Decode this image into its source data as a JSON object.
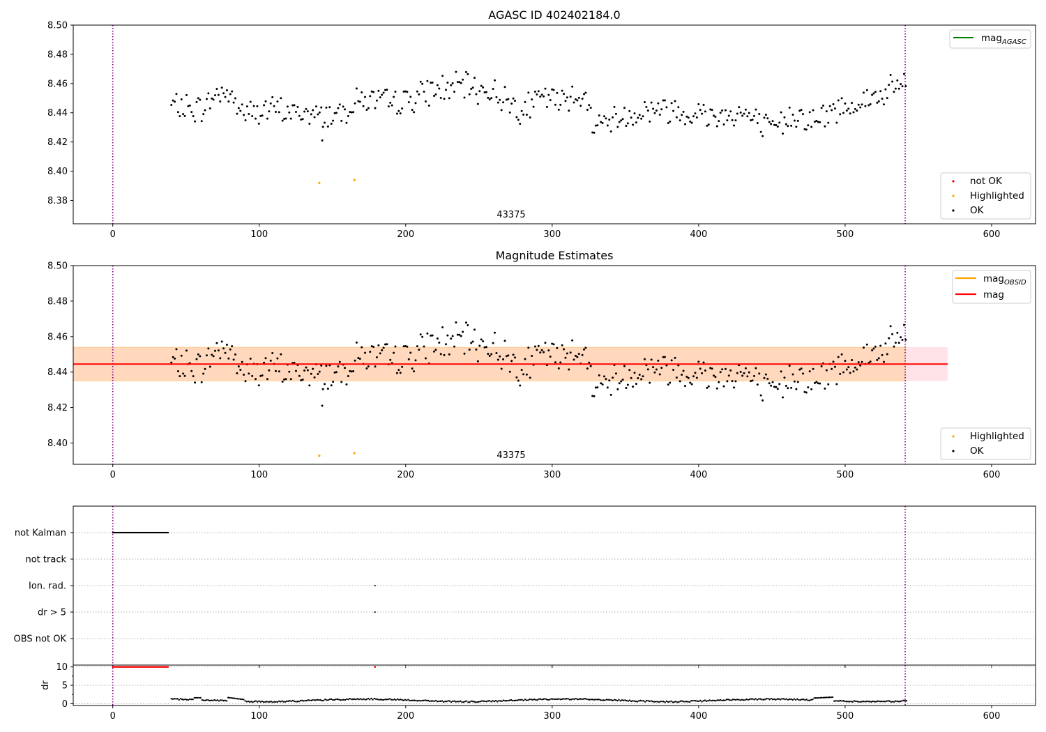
{
  "chart_data": [
    {
      "type": "scatter",
      "title": "AGASC ID 402402184.0",
      "xlim": [
        -27,
        630
      ],
      "ylim": [
        8.364,
        8.5
      ],
      "xticks": [
        0,
        100,
        200,
        300,
        400,
        500,
        600
      ],
      "yticks": [
        8.38,
        8.4,
        8.42,
        8.44,
        8.46,
        8.48,
        8.5
      ],
      "ytick_labels": [
        "8.38",
        "8.40",
        "8.42",
        "8.44",
        "8.46",
        "8.48",
        "8.50"
      ],
      "vlines": [
        0,
        541
      ],
      "vline_color": "#800080",
      "annotation": {
        "text": "43375",
        "x": 270,
        "y": 8.367
      },
      "series": [
        {
          "name": "not OK",
          "color": "#ff0000",
          "points": []
        },
        {
          "name": "Highlighted",
          "color": "#ffa500",
          "points": [
            [
              141,
              8.392
            ],
            [
              165,
              8.394
            ]
          ]
        },
        {
          "name": "OK",
          "color": "#000000",
          "note_shape": "~430 black points from x=40 to x=542, mean ≈ 8.444, range ≈ 8.42–8.47"
        }
      ],
      "line_legend": [
        {
          "name": "mag",
          "sub": "AGASC",
          "color": "#008000"
        }
      ],
      "grid": false,
      "legend": [
        "top-right",
        "bottom-right"
      ]
    },
    {
      "type": "scatter",
      "title": "Magnitude Estimates",
      "xlim": [
        -27,
        630
      ],
      "ylim": [
        8.388,
        8.5
      ],
      "xticks": [
        0,
        100,
        200,
        300,
        400,
        500,
        600
      ],
      "yticks": [
        8.4,
        8.42,
        8.44,
        8.46,
        8.48,
        8.5
      ],
      "ytick_labels": [
        "8.40",
        "8.42",
        "8.44",
        "8.46",
        "8.48",
        "8.50"
      ],
      "vlines": [
        0,
        541
      ],
      "annotation": {
        "text": "43375",
        "x": 270,
        "y": 8.391
      },
      "bands": [
        {
          "x": [
            -27,
            570
          ],
          "y": [
            8.435,
            8.454
          ],
          "color": "#ffc0cb",
          "opacity": 0.45
        },
        {
          "x": [
            -27,
            541
          ],
          "y": [
            8.435,
            8.454
          ],
          "color": "#ffa500",
          "opacity": 0.18
        }
      ],
      "hlines": [
        {
          "name": "mag",
          "y": 8.4445,
          "x": [
            -27,
            570
          ],
          "color": "#ff0000"
        }
      ],
      "series": [
        {
          "name": "Highlighted",
          "color": "#ffa500",
          "points": [
            [
              141,
              8.3928
            ],
            [
              165,
              8.3943
            ]
          ]
        },
        {
          "name": "OK",
          "color": "#000000",
          "note_shape": "same black points as upper panel"
        }
      ],
      "line_legend": [
        {
          "name": "mag",
          "sub": "OBSID",
          "color": "#ffa500"
        },
        {
          "name": "mag",
          "sub": "",
          "color": "#ff0000"
        }
      ],
      "grid": false,
      "legend": [
        "top-right",
        "bottom-right"
      ]
    },
    {
      "type": "scatter",
      "title": "",
      "xlim": [
        -27,
        630
      ],
      "xticks": [
        0,
        100,
        200,
        300,
        400,
        500,
        600
      ],
      "categories": [
        "not Kalman",
        "not track",
        "Ion. rad.",
        "dr > 5",
        "OBS not OK"
      ],
      "flags": [
        {
          "category": "not Kalman",
          "x_range": [
            0,
            38
          ]
        },
        {
          "category": "Ion. rad.",
          "x": [
            179
          ]
        },
        {
          "category": "dr > 5",
          "x": [
            179
          ]
        }
      ],
      "vlines": [
        0,
        541
      ],
      "grid": "y-dotted"
    },
    {
      "type": "scatter",
      "title": "",
      "ylabel": "dr",
      "xlim": [
        -27,
        630
      ],
      "ylim": [
        -0.5,
        10.5
      ],
      "yticks": [
        0,
        5,
        10
      ],
      "ytick_labels": [
        "0",
        "5",
        "10"
      ],
      "xticks": [
        0,
        100,
        200,
        300,
        400,
        500,
        600
      ],
      "xtick_labels": [
        "0",
        "100",
        "200",
        "300",
        "400",
        "500",
        "600"
      ],
      "series": [
        {
          "name": "dr clipped",
          "color": "#ff0000",
          "x_range": [
            0,
            38
          ],
          "y": 10,
          "extra_x": [
            179
          ]
        },
        {
          "name": "dr",
          "color": "#000000",
          "x_range": [
            40,
            542
          ],
          "approx_range": [
            0.3,
            2.0
          ]
        }
      ],
      "vlines": [
        0,
        541
      ],
      "grid": "y-dotted"
    }
  ],
  "legend_labels": {
    "not_ok": "not OK",
    "highlighted": "Highlighted",
    "ok": "OK",
    "mag": "mag",
    "agasc_sub": "AGASC",
    "obsid_sub": "OBSID"
  }
}
